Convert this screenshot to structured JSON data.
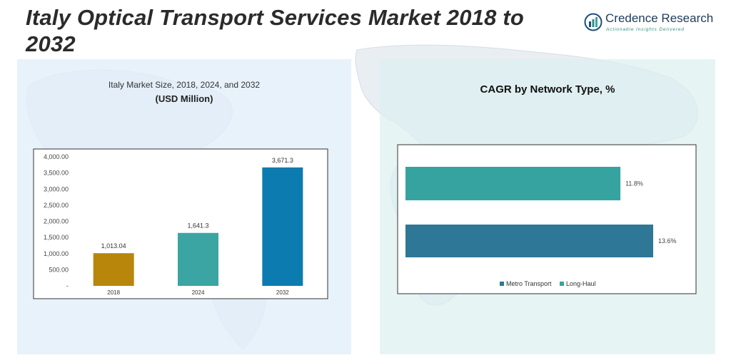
{
  "page": {
    "title": "Italy Optical Transport Services Market 2018 to 2032"
  },
  "brand": {
    "name": "Credence Research",
    "tagline": "Actionable Insights Delivered",
    "colors": {
      "name": "#1f3b5a",
      "bars": [
        "#1f4e79",
        "#2e8b8b",
        "#3ba7a0",
        "#1f4e79"
      ]
    }
  },
  "chart_data": [
    {
      "type": "bar",
      "title": "Italy Market Size, 2018, 2024, and 2032",
      "subtitle": "(USD Million)",
      "categories": [
        "2018",
        "2024",
        "2032"
      ],
      "values": [
        1013.04,
        1641.3,
        3671.3
      ],
      "value_labels": [
        "1,013.04",
        "1,641.3",
        "3,671.3"
      ],
      "colors": [
        "#b8860b",
        "#3aa5a3",
        "#0c7bb0"
      ],
      "ylim": [
        0,
        4000
      ],
      "yticks": [
        0,
        500,
        1000,
        1500,
        2000,
        2500,
        3000,
        3500,
        4000
      ],
      "ytick_labels": [
        "-",
        "500.00",
        "1,000.00",
        "1,500.00",
        "2,000.00",
        "2,500.00",
        "3,000.00",
        "3,500.00",
        "4,000.00"
      ],
      "grid": false,
      "xlabel": "",
      "ylabel": ""
    },
    {
      "type": "bar",
      "orientation": "horizontal",
      "title": "CAGR by Network Type, %",
      "categories": [
        "Long-Haul",
        "Metro Transport"
      ],
      "values": [
        11.8,
        13.6
      ],
      "value_labels": [
        "11.8%",
        "13.6%"
      ],
      "colors": [
        "#36a3a0",
        "#2e7796"
      ],
      "xlim": [
        0,
        14
      ],
      "legend": {
        "position": "bottom",
        "entries": [
          {
            "name": "Metro Transport",
            "color": "#2e7796"
          },
          {
            "name": "Long-Haul",
            "color": "#36a3a0"
          }
        ]
      },
      "grid": false
    }
  ]
}
